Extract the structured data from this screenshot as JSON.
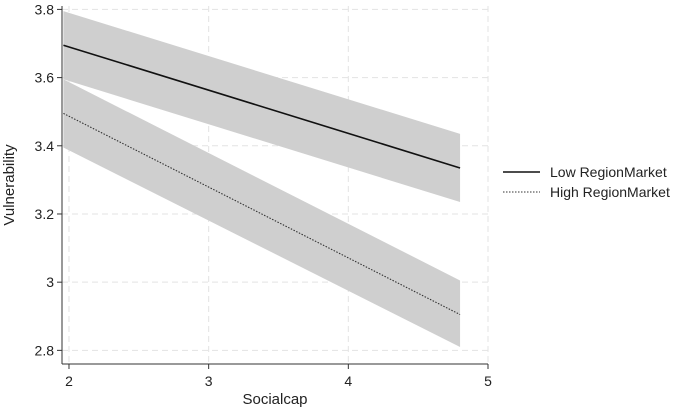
{
  "chart_data": {
    "type": "line",
    "xlabel": "Socialcap",
    "ylabel": "Vulnerability",
    "xlim": [
      1.95,
      5.0
    ],
    "ylim": [
      2.76,
      3.81
    ],
    "x_ticks": [
      2,
      3,
      4,
      5
    ],
    "x_tick_labels": [
      "2",
      "3",
      "4",
      "5"
    ],
    "y_ticks": [
      2.8,
      3.0,
      3.2,
      3.4,
      3.6,
      3.8
    ],
    "y_tick_labels": [
      "2.8",
      "3",
      "3.2",
      "3.4",
      "3.6",
      "3.8"
    ],
    "grid": true,
    "legend_position": "right",
    "band_color": "#cfcfcf",
    "series": [
      {
        "name": "Low RegionMarket",
        "line_style": "solid",
        "color": "#111111",
        "x": [
          1.96,
          4.8
        ],
        "y": [
          3.695,
          3.335
        ],
        "ci_lower": [
          3.595,
          3.235
        ],
        "ci_upper": [
          3.795,
          3.435
        ]
      },
      {
        "name": "High RegionMarket",
        "line_style": "dotted",
        "color": "#333333",
        "x": [
          1.96,
          4.8
        ],
        "y": [
          3.495,
          2.905
        ],
        "ci_lower": [
          3.395,
          2.81
        ],
        "ci_upper": [
          3.595,
          3.005
        ]
      }
    ]
  }
}
